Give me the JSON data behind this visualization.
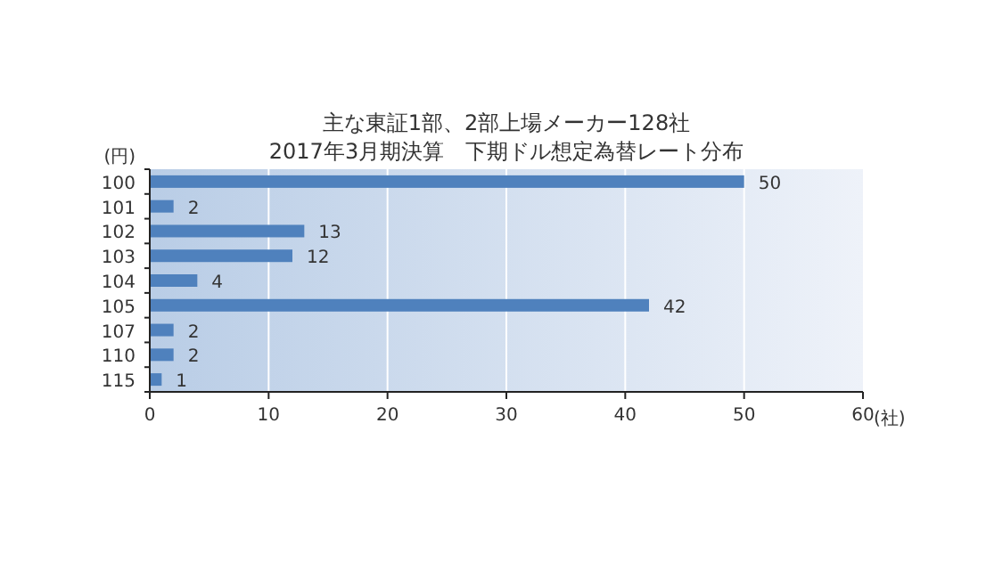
{
  "chart_data": {
    "type": "bar",
    "orientation": "horizontal",
    "title": "主な東証1部、2部上場メーカー128社",
    "subtitle": "2017年3月期決算　下期ドル想定為替レート分布",
    "ylabel": "(円)",
    "xlabel": "(社)",
    "categories": [
      "100",
      "101",
      "102",
      "103",
      "104",
      "105",
      "107",
      "110",
      "115"
    ],
    "values": [
      50,
      2,
      13,
      12,
      4,
      42,
      2,
      2,
      1
    ],
    "color": "#4f81bd",
    "xlim": [
      0,
      60
    ],
    "xticks": [
      0,
      10,
      20,
      30,
      40,
      50,
      60
    ],
    "grid": "x",
    "data_labels": true
  }
}
